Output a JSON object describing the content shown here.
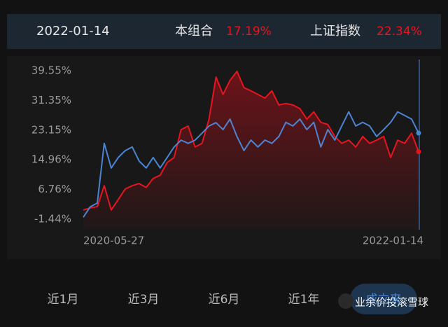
{
  "header": {
    "date": "2022-01-14",
    "portfolio_value": "17.19%",
    "index_value": "22.34%"
  },
  "chart_data": {
    "type": "line",
    "categories": [
      "2020-05-27",
      null,
      null,
      null,
      null,
      null,
      null,
      null,
      null,
      null,
      null,
      null,
      null,
      null,
      null,
      null,
      null,
      null,
      null,
      null,
      null,
      null,
      null,
      null,
      null,
      null,
      null,
      null,
      null,
      null,
      null,
      null,
      null,
      null,
      null,
      null,
      null,
      null,
      null,
      null,
      null,
      null,
      null,
      null,
      null,
      null,
      null,
      null,
      "2022-01-14"
    ],
    "series": [
      {
        "name": "本组合",
        "color": "#e8141e",
        "area": true,
        "values": [
          1.1,
          1.7,
          2.0,
          7.8,
          1.1,
          4,
          6.9,
          7.8,
          8.4,
          7.3,
          9.8,
          10.7,
          14.2,
          15.6,
          23.3,
          24.3,
          18.5,
          19.5,
          26.2,
          37.8,
          33,
          36.9,
          39.4,
          34.9,
          34,
          33,
          32,
          34,
          30.1,
          30.5,
          30.1,
          29.1,
          26.2,
          28.2,
          25.3,
          24.7,
          21.4,
          19.5,
          20.4,
          18.5,
          21.4,
          19.5,
          20.4,
          21.4,
          15.6,
          20.4,
          19.5,
          22.3,
          17.19
        ]
      },
      {
        "name": "上证指数",
        "color": "#4a84d2",
        "area": false,
        "values": [
          -0.9,
          2.0,
          3,
          19.5,
          12.7,
          15.6,
          17.5,
          18.5,
          14.6,
          12.7,
          15.6,
          12.7,
          15.6,
          18.5,
          20.4,
          19.5,
          20.4,
          22.3,
          24.3,
          25.2,
          23.3,
          26.2,
          21.4,
          17.5,
          20.4,
          18.5,
          20.4,
          19.5,
          21.4,
          25.3,
          24.3,
          26.2,
          23.3,
          25.3,
          18.5,
          23.3,
          20.4,
          24.3,
          28.2,
          24.3,
          25.3,
          24.3,
          21.4,
          23.3,
          25.3,
          28.2,
          27.2,
          26.2,
          22.34
        ]
      }
    ],
    "ylim": [
      -4.34,
      42.65
    ],
    "yticks": [
      {
        "value": -1.44,
        "label": "-1.44%"
      },
      {
        "value": 6.76,
        "label": "6.76%"
      },
      {
        "value": 14.96,
        "label": "14.96%"
      },
      {
        "value": 23.15,
        "label": "23.15%"
      },
      {
        "value": 31.35,
        "label": "31.35%"
      },
      {
        "value": 39.55,
        "label": "39.55%"
      }
    ],
    "grid": false
  },
  "tabs": [
    "近1月",
    "近3月",
    "近6月",
    "近1年",
    "成立来"
  ],
  "watermark": "业余价投滚雪球"
}
